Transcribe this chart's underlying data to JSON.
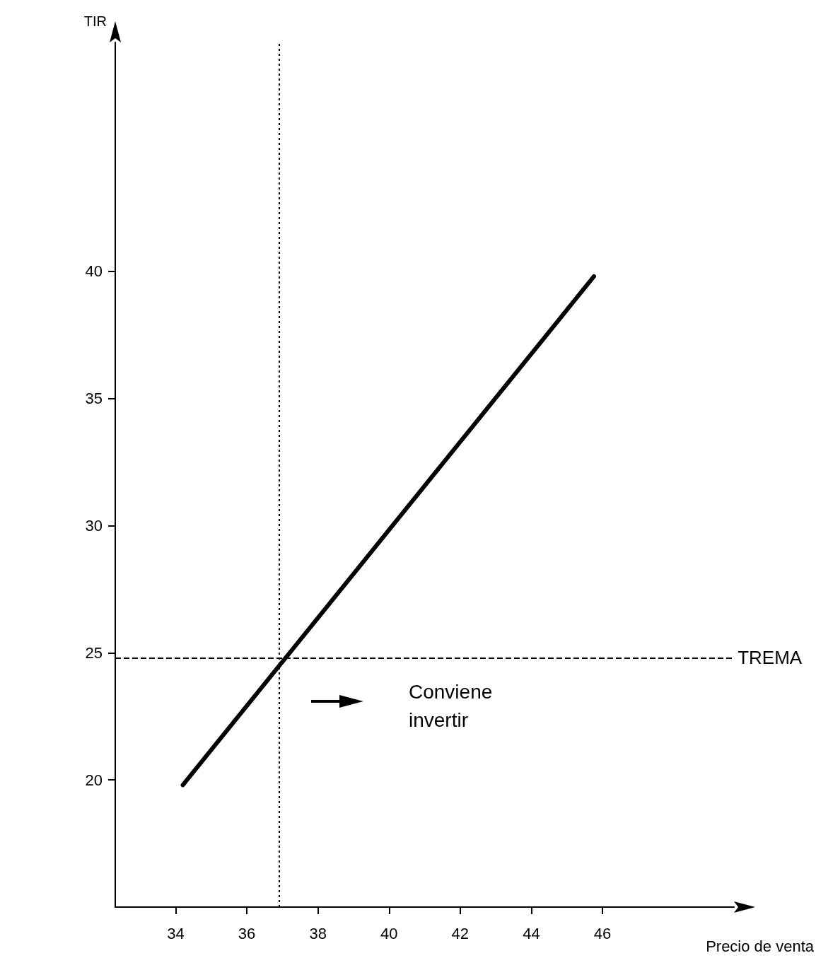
{
  "chart_data": {
    "type": "line",
    "xlabel": "Precio de venta",
    "ylabel": "TIR",
    "x": [
      34.2,
      45.76
    ],
    "series": [
      {
        "color": "#000000",
        "values": [
          19.8,
          39.8
        ]
      }
    ],
    "xlim": [
      32.3,
      49.7
    ],
    "xticks": [
      34,
      36,
      38,
      40,
      42,
      44,
      46
    ],
    "ylim": [
      15,
      49
    ],
    "yticks": [
      20,
      25,
      30,
      35,
      40
    ],
    "grid": false,
    "marker": "none",
    "line_style": "solid",
    "ref_lines": [
      {
        "axis": "y",
        "value": 24.8,
        "label": "TREMA",
        "line_style": "dashed",
        "color": "#000000"
      },
      {
        "axis": "x",
        "value": 36.9,
        "label": null,
        "line_style": "dotted",
        "color": "#000000"
      }
    ],
    "annotations": [
      "Conviene invertir"
    ]
  }
}
